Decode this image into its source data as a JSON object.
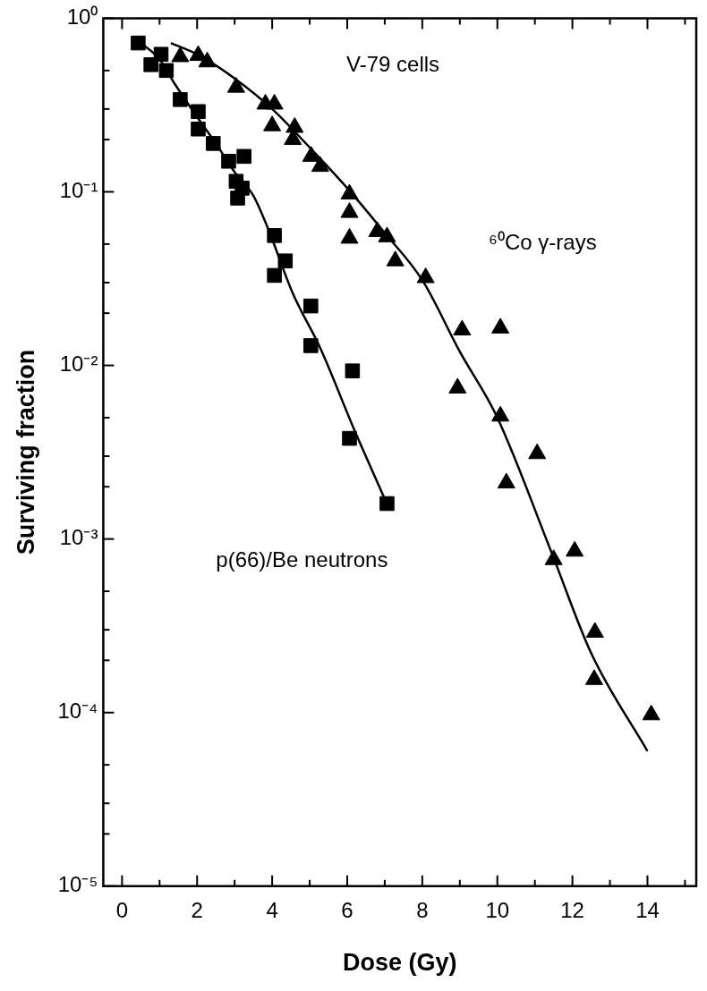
{
  "chart_data": {
    "type": "scatter",
    "xlabel": "Dose (Gy)",
    "ylabel": "Surviving fraction",
    "log": "y",
    "grid": false,
    "legend": false,
    "xlim": [
      -0.5,
      15.3
    ],
    "ylim": [
      1e-05,
      1
    ],
    "xticks": [
      0,
      {
        "value": 1,
        "label": null
      },
      2,
      {
        "value": 3,
        "label": null
      },
      4,
      {
        "value": 5,
        "label": null
      },
      6,
      {
        "value": 7,
        "label": null
      },
      8,
      {
        "value": 9,
        "label": null
      },
      10,
      {
        "value": 11,
        "label": null
      },
      12,
      {
        "value": 13,
        "label": null
      },
      14,
      {
        "value": 15,
        "label": null
      }
    ],
    "yticks": [
      {
        "value": 1e-05,
        "label": "10⁻⁵"
      },
      {
        "value": 2e-05,
        "label": null
      },
      {
        "value": 3e-05,
        "label": null
      },
      {
        "value": 5e-05,
        "label": null
      },
      {
        "value": 0.0001,
        "label": "10⁻⁴"
      },
      {
        "value": 0.0002,
        "label": null
      },
      {
        "value": 0.0003,
        "label": null
      },
      {
        "value": 0.0005,
        "label": null
      },
      {
        "value": 0.001,
        "label": "10⁻³"
      },
      {
        "value": 0.002,
        "label": null
      },
      {
        "value": 0.003,
        "label": null
      },
      {
        "value": 0.005,
        "label": null
      },
      {
        "value": 0.01,
        "label": "10⁻²"
      },
      {
        "value": 0.02,
        "label": null
      },
      {
        "value": 0.03,
        "label": null
      },
      {
        "value": 0.05,
        "label": null
      },
      {
        "value": 0.1,
        "label": "10⁻¹"
      },
      {
        "value": 0.2,
        "label": null
      },
      {
        "value": 0.3,
        "label": null
      },
      {
        "value": 0.5,
        "label": null
      },
      {
        "value": 1,
        "label": "10⁰"
      }
    ],
    "annotations": [
      "V-79 cells"
    ],
    "series": [
      {
        "name": "p(66)/Be neutrons",
        "marker": "square",
        "color": "#000000",
        "x": [
          0.43,
          1.04,
          0.77,
          1.18,
          1.55,
          2.03,
          2.03,
          2.43,
          2.84,
          3.25,
          3.04,
          3.08,
          3.2,
          4.06,
          4.35,
          4.06,
          5.03,
          5.03,
          6.14,
          6.06,
          7.06
        ],
        "values": [
          0.72,
          0.62,
          0.54,
          0.5,
          0.34,
          0.29,
          0.23,
          0.19,
          0.15,
          0.16,
          0.115,
          0.092,
          0.105,
          0.056,
          0.04,
          0.033,
          0.022,
          0.013,
          0.0093,
          0.0038,
          0.0016
        ]
      },
      {
        "name": "⁶⁰Co γ-rays",
        "marker": "triangle",
        "color": "#000000",
        "x": [
          1.55,
          2.03,
          2.27,
          3.04,
          3.82,
          4.06,
          4.0,
          4.6,
          4.55,
          5.04,
          5.28,
          6.06,
          6.06,
          6.06,
          6.8,
          7.06,
          7.28,
          8.09,
          9.06,
          10.08,
          8.94,
          10.08,
          11.06,
          10.24,
          12.06,
          11.5,
          12.6,
          12.58,
          14.1
        ],
        "values": [
          0.6,
          0.61,
          0.56,
          0.4,
          0.32,
          0.32,
          0.24,
          0.235,
          0.2,
          0.16,
          0.14,
          0.097,
          0.076,
          0.054,
          0.059,
          0.055,
          0.04,
          0.032,
          0.016,
          0.0164,
          0.0074,
          0.0051,
          0.0031,
          0.0021,
          0.00085,
          0.00076,
          0.00029,
          0.000155,
          9.7e-05
        ]
      },
      {
        "type": "line",
        "marker": "none",
        "line_style": "solid",
        "color": "#000000",
        "x": [
          0.5,
          1,
          1.4,
          2,
          2.5,
          3,
          3.5,
          3.87,
          4.55,
          5.28,
          6.18,
          7
        ],
        "values": [
          0.72,
          0.58,
          0.42,
          0.27,
          0.19,
          0.13,
          0.095,
          0.063,
          0.026,
          0.0126,
          0.0043,
          0.0017
        ]
      },
      {
        "type": "line",
        "marker": "none",
        "line_style": "solid",
        "color": "#000000",
        "x": [
          1.3,
          2,
          3,
          4,
          5,
          6,
          7,
          8,
          9,
          10,
          11.45,
          12.5,
          14
        ],
        "values": [
          0.72,
          0.62,
          0.45,
          0.3,
          0.18,
          0.105,
          0.058,
          0.031,
          0.012,
          0.005,
          0.00083,
          0.00022,
          6e-05
        ]
      }
    ]
  }
}
